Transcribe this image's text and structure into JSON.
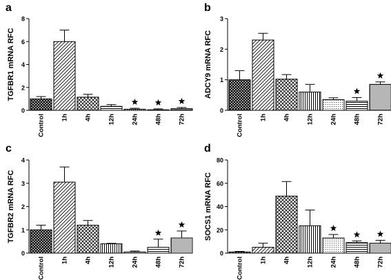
{
  "figure": {
    "colors": {
      "bar_stroke": "#000000",
      "axis": "#000000",
      "background": "#ffffff"
    }
  },
  "chart_data": [
    {
      "type": "bar",
      "panel": "a",
      "ylabel": "TGFBR1 mRNA RFC",
      "categories": [
        "Control",
        "1h",
        "4h",
        "12h",
        "24h",
        "48h",
        "72h"
      ],
      "values": [
        1.0,
        6.0,
        1.15,
        0.35,
        0.1,
        0.05,
        0.15
      ],
      "errors": [
        0.2,
        1.0,
        0.25,
        0.15,
        0.08,
        0.08,
        0.1
      ],
      "significant": [
        false,
        false,
        false,
        false,
        true,
        true,
        true
      ],
      "patterns": [
        "crosshatch",
        "diagonal",
        "crosshatch-light",
        "horizontal",
        "vertical",
        "vertical-dense",
        "horizontal-dense"
      ],
      "ylim": [
        0,
        8
      ],
      "yticks": [
        0,
        2,
        4,
        6,
        8
      ],
      "grid": false
    },
    {
      "type": "bar",
      "panel": "b",
      "ylabel": "ADCY9 mRNA RFC",
      "categories": [
        "Control",
        "1h",
        "4h",
        "12h",
        "24h",
        "48h",
        "72h"
      ],
      "values": [
        1.0,
        2.3,
        1.02,
        0.6,
        0.35,
        0.3,
        0.85
      ],
      "errors": [
        0.3,
        0.22,
        0.15,
        0.25,
        0.06,
        0.12,
        0.08
      ],
      "significant": [
        false,
        false,
        false,
        false,
        false,
        true,
        true
      ],
      "patterns": [
        "crosshatch",
        "diagonal",
        "crosshatch-light",
        "vertical",
        "dots-light",
        "horizontal",
        "dots-dense"
      ],
      "ylim": [
        0,
        3
      ],
      "yticks": [
        0,
        1,
        2,
        3
      ],
      "grid": false
    },
    {
      "type": "bar",
      "panel": "c",
      "ylabel": "TGFBR2 mRNA RFC",
      "categories": [
        "Control",
        "1h",
        "4h",
        "12h",
        "24h",
        "48h",
        "72h"
      ],
      "values": [
        1.0,
        3.05,
        1.2,
        0.4,
        0.05,
        0.25,
        0.65
      ],
      "errors": [
        0.2,
        0.65,
        0.2,
        0.02,
        0.04,
        0.35,
        0.3
      ],
      "significant": [
        false,
        false,
        false,
        false,
        false,
        true,
        true
      ],
      "patterns": [
        "crosshatch",
        "diagonal",
        "crosshatch-light",
        "vertical",
        "dots-light",
        "horizontal",
        "dots-dense"
      ],
      "ylim": [
        0,
        4
      ],
      "yticks": [
        0,
        1,
        2,
        3,
        4
      ],
      "grid": false
    },
    {
      "type": "bar",
      "panel": "d",
      "ylabel": "SOCS1 mRNA RFC",
      "categories": [
        "Control",
        "1h",
        "4h",
        "12h",
        "24h",
        "48h",
        "72h"
      ],
      "values": [
        1.0,
        5.0,
        49.0,
        23.5,
        13.0,
        9.0,
        8.5
      ],
      "errors": [
        0.5,
        3.5,
        12.5,
        13.5,
        3.0,
        1.5,
        2.5
      ],
      "significant": [
        false,
        false,
        false,
        false,
        true,
        true,
        true
      ],
      "patterns": [
        "crosshatch",
        "diagonal",
        "crosshatch-light",
        "vertical",
        "dots-light",
        "horizontal",
        "dots-dense"
      ],
      "ylim": [
        0,
        80
      ],
      "yticks": [
        0,
        20,
        40,
        60,
        80
      ],
      "grid": false
    }
  ]
}
